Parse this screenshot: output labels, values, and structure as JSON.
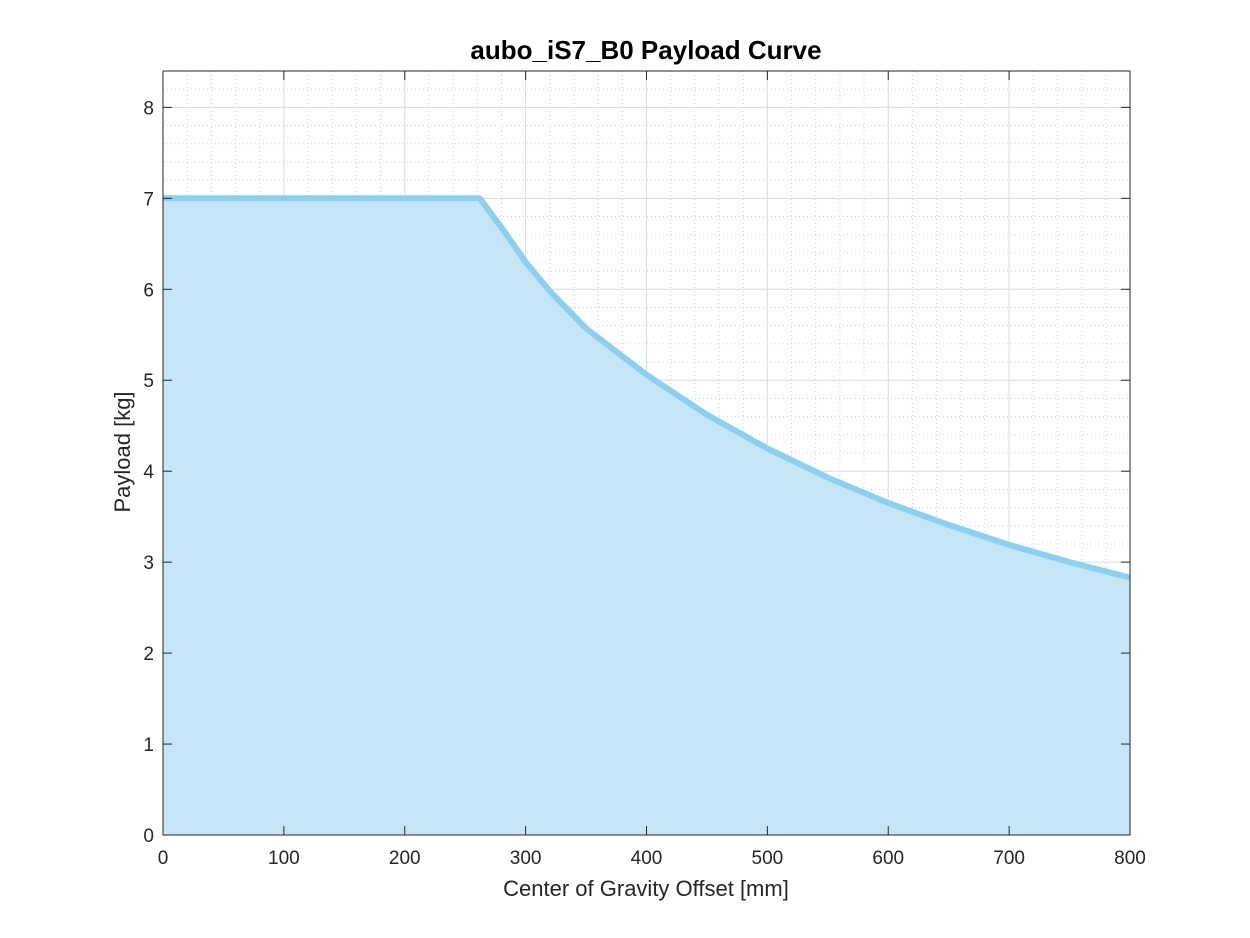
{
  "chart_data": {
    "type": "area",
    "title": "aubo_iS7_B0 Payload Curve",
    "xlabel": "Center of Gravity Offset [mm]",
    "ylabel": "Payload [kg]",
    "xlim": [
      0,
      800
    ],
    "ylim": [
      0,
      8.4
    ],
    "xticks": [
      0,
      100,
      200,
      300,
      400,
      500,
      600,
      700,
      800
    ],
    "xtick_labels": [
      "0",
      "100",
      "200",
      "300",
      "400",
      "500",
      "600",
      "700",
      "800"
    ],
    "yticks": [
      0,
      1,
      2,
      3,
      4,
      5,
      6,
      7,
      8
    ],
    "ytick_labels": [
      "0",
      "1",
      "2",
      "3",
      "4",
      "5",
      "6",
      "7",
      "8"
    ],
    "grid": true,
    "minor_grid": true,
    "series": [
      {
        "x": [
          0,
          100,
          200,
          262,
          280,
          300,
          320,
          350,
          400,
          450,
          500,
          550,
          600,
          650,
          700,
          750,
          800
        ],
        "y": [
          7.0,
          7.0,
          7.0,
          7.0,
          6.68,
          6.3,
          5.98,
          5.57,
          5.06,
          4.62,
          4.25,
          3.93,
          3.65,
          3.41,
          3.19,
          3.0,
          2.83
        ],
        "color": "#8ecff0",
        "fill_color": "#c4e5f5"
      }
    ]
  }
}
